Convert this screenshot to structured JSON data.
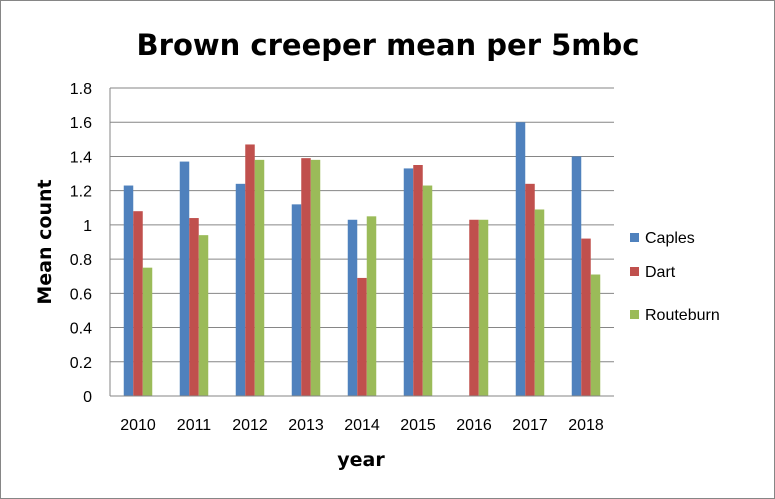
{
  "chart_data": {
    "type": "bar",
    "title": "Brown creeper mean per 5mbc",
    "xlabel": "year",
    "ylabel": "Mean count",
    "categories": [
      "2010",
      "2011",
      "2012",
      "2013",
      "2014",
      "2015",
      "2016",
      "2017",
      "2018"
    ],
    "series": [
      {
        "name": "Caples",
        "color": "#4F81BD",
        "values": [
          1.23,
          1.37,
          1.24,
          1.12,
          1.03,
          1.33,
          null,
          1.6,
          1.4
        ]
      },
      {
        "name": "Dart",
        "color": "#C0504D",
        "values": [
          1.08,
          1.04,
          1.47,
          1.39,
          0.69,
          1.35,
          1.03,
          1.24,
          0.92
        ]
      },
      {
        "name": "Routeburn",
        "color": "#9BBB59",
        "values": [
          0.75,
          0.94,
          1.38,
          1.38,
          1.05,
          1.23,
          1.03,
          1.09,
          0.71
        ]
      }
    ],
    "ylim": [
      0,
      1.8
    ],
    "yticks": [
      "0",
      "0.2",
      "0.4",
      "0.6",
      "0.8",
      "1",
      "1.2",
      "1.4",
      "1.6",
      "1.8"
    ],
    "grid": true,
    "legend": "right"
  }
}
